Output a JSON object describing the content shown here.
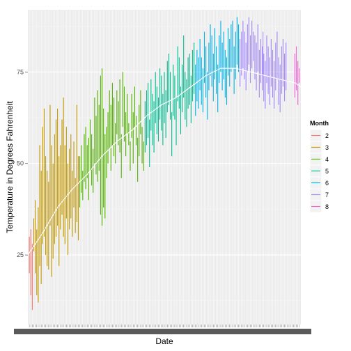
{
  "chart_data": {
    "type": "line",
    "xlabel": "Date",
    "ylabel": "Temperature in Degrees Fahrenheit",
    "ylim": [
      6,
      92
    ],
    "yticks": [
      25,
      50,
      75
    ],
    "xlim": [
      0,
      184
    ],
    "legend": {
      "title": "Month",
      "placement": "right",
      "entries": [
        {
          "name": "2",
          "color": "#F8766D"
        },
        {
          "name": "3",
          "color": "#C49A00"
        },
        {
          "name": "4",
          "color": "#53B400"
        },
        {
          "name": "5",
          "color": "#00C094"
        },
        {
          "name": "6",
          "color": "#00B6EB"
        },
        {
          "name": "7",
          "color": "#A58AFF"
        },
        {
          "name": "8",
          "color": "#FB61D7"
        }
      ]
    },
    "series": [
      {
        "name": "2",
        "color": "#F8766D",
        "x": [
          1,
          2,
          3
        ],
        "low": [
          20,
          14,
          10
        ],
        "high": [
          30,
          32,
          28
        ]
      },
      {
        "name": "3",
        "color": "#C49A00",
        "x": [
          4,
          5,
          6,
          7,
          8,
          9,
          10,
          11,
          12,
          13,
          14,
          15,
          16,
          17,
          18,
          19,
          20,
          21,
          22,
          23,
          24,
          25,
          26,
          27,
          28,
          29,
          30,
          31,
          32,
          33,
          34
        ],
        "low": [
          26,
          20,
          14,
          12,
          22,
          17,
          28,
          30,
          25,
          22,
          21,
          33,
          19,
          24,
          28,
          30,
          33,
          22,
          32,
          36,
          30,
          28,
          35,
          25,
          32,
          35,
          30,
          38,
          31,
          34,
          29
        ],
        "high": [
          35,
          40,
          32,
          38,
          55,
          48,
          60,
          65,
          52,
          48,
          45,
          66,
          55,
          50,
          58,
          62,
          65,
          52,
          55,
          62,
          68,
          55,
          60,
          50,
          54,
          58,
          48,
          56,
          46,
          66,
          52
        ]
      },
      {
        "name": "4",
        "color": "#53B400",
        "x": [
          35,
          36,
          37,
          38,
          39,
          40,
          41,
          42,
          43,
          44,
          45,
          46,
          47,
          48,
          49,
          50,
          51,
          52,
          53,
          54,
          55,
          56,
          57,
          58,
          59,
          60,
          61,
          62,
          63,
          64,
          65,
          66,
          67,
          68,
          69,
          70,
          71,
          72,
          73,
          74,
          75,
          76,
          77,
          78
        ],
        "low": [
          38,
          42,
          40,
          45,
          43,
          46,
          40,
          48,
          44,
          42,
          50,
          47,
          45,
          48,
          36,
          33,
          38,
          35,
          46,
          50,
          54,
          48,
          55,
          52,
          50,
          58,
          55,
          53,
          46,
          60,
          56,
          52,
          58,
          55,
          48,
          57,
          50,
          60,
          55,
          45,
          52,
          58,
          50,
          48
        ],
        "high": [
          52,
          55,
          48,
          58,
          60,
          55,
          57,
          62,
          58,
          54,
          68,
          63,
          70,
          66,
          74,
          76,
          65,
          58,
          60,
          64,
          70,
          66,
          72,
          68,
          61,
          70,
          67,
          73,
          58,
          75,
          71,
          64,
          69,
          61,
          56,
          69,
          64,
          71,
          63,
          57,
          66,
          70,
          60,
          56
        ]
      },
      {
        "name": "5",
        "color": "#00C094",
        "x": [
          79,
          80,
          81,
          82,
          83,
          84,
          85,
          86,
          87,
          88,
          89,
          90,
          91,
          92,
          93,
          94,
          95,
          96,
          97,
          98,
          99,
          100,
          101,
          102,
          103,
          104,
          105,
          106,
          107,
          108,
          109,
          110,
          111,
          112
        ],
        "low": [
          53,
          55,
          57,
          49,
          59,
          55,
          53,
          61,
          58,
          56,
          62,
          59,
          55,
          61,
          57,
          64,
          66,
          62,
          52,
          63,
          62,
          55,
          67,
          65,
          58,
          64,
          68,
          62,
          60,
          65,
          66,
          61,
          67,
          69
        ],
        "high": [
          67,
          70,
          72,
          62,
          73,
          69,
          67,
          75,
          71,
          68,
          76,
          74,
          69,
          75,
          70,
          78,
          80,
          75,
          64,
          77,
          74,
          68,
          82,
          79,
          71,
          77,
          85,
          75,
          73,
          79,
          80,
          74,
          81,
          83
        ]
      },
      {
        "name": "6",
        "color": "#00B6EB",
        "x": [
          113,
          114,
          115,
          116,
          117,
          118,
          119,
          120,
          121,
          122,
          123,
          124,
          125,
          126,
          127,
          128,
          129,
          130,
          131,
          132,
          133,
          134,
          135,
          136,
          137,
          138,
          139,
          140,
          141,
          142
        ],
        "low": [
          63,
          67,
          65,
          70,
          66,
          64,
          72,
          68,
          62,
          70,
          74,
          71,
          67,
          73,
          69,
          64,
          72,
          75,
          70,
          73,
          68,
          66,
          74,
          71,
          75,
          76,
          69,
          73,
          77,
          75
        ],
        "high": [
          77,
          81,
          79,
          84,
          79,
          76,
          86,
          82,
          75,
          83,
          88,
          85,
          80,
          87,
          82,
          77,
          85,
          89,
          83,
          86,
          81,
          79,
          87,
          84,
          88,
          89,
          82,
          86,
          90,
          88
        ]
      },
      {
        "name": "7",
        "color": "#A58AFF",
        "x": [
          143,
          144,
          145,
          146,
          147,
          148,
          149,
          150,
          151,
          152,
          153,
          154,
          155,
          156,
          157,
          158,
          158.5,
          159,
          160,
          161,
          162,
          163,
          164,
          165,
          166,
          167,
          168,
          169,
          170,
          171,
          172,
          173,
          174
        ],
        "low": [
          71,
          74,
          76,
          73,
          70,
          75,
          77,
          72,
          76,
          78,
          73,
          70,
          75,
          68,
          72,
          70,
          74,
          67,
          65,
          72,
          69,
          66,
          71,
          68,
          65,
          70,
          73,
          66,
          64,
          69,
          71,
          67,
          70
        ],
        "high": [
          84,
          86,
          89,
          86,
          83,
          88,
          90,
          85,
          89,
          86,
          85,
          83,
          88,
          81,
          84,
          82,
          86,
          80,
          78,
          85,
          82,
          79,
          84,
          81,
          78,
          83,
          86,
          79,
          77,
          82,
          84,
          80,
          83
        ]
      },
      {
        "name": "8",
        "color": "#FB61D7",
        "x": [
          180,
          181,
          182,
          183
        ],
        "low": [
          68,
          70,
          66,
          72
        ],
        "high": [
          80,
          82,
          78,
          76
        ]
      }
    ],
    "smooth": {
      "color": "#ffffff",
      "x": [
        0,
        10,
        20,
        30,
        40,
        50,
        60,
        70,
        80,
        90,
        100,
        110,
        120,
        130,
        140,
        150,
        160,
        170,
        180,
        184
      ],
      "y": [
        25,
        31,
        38,
        43,
        47,
        52,
        56,
        59,
        63,
        66,
        68,
        71,
        74,
        76,
        76,
        75,
        74,
        73,
        72,
        71
      ]
    }
  }
}
